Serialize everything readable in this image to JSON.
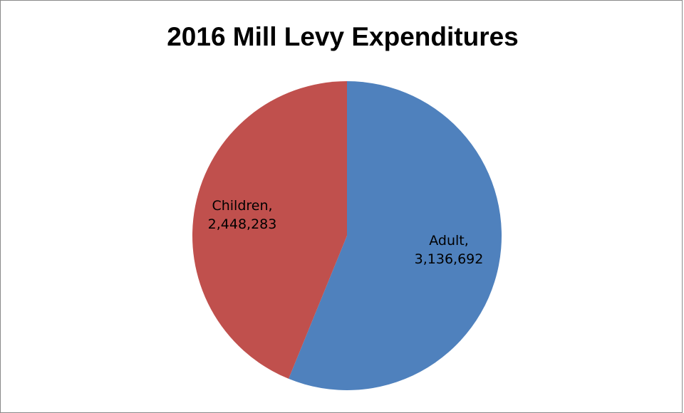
{
  "chart_data": {
    "type": "pie",
    "title": "2016 Mill Levy Expenditures",
    "slices": [
      {
        "name": "Adult",
        "value": 3136692,
        "value_label": "3,136,692",
        "color": "#4F81BD"
      },
      {
        "name": "Children",
        "value": 2448283,
        "value_label": "2,448,283",
        "color": "#C0504D"
      }
    ],
    "start_angle": "12 o'clock",
    "direction": "clockwise",
    "legend": "none"
  }
}
